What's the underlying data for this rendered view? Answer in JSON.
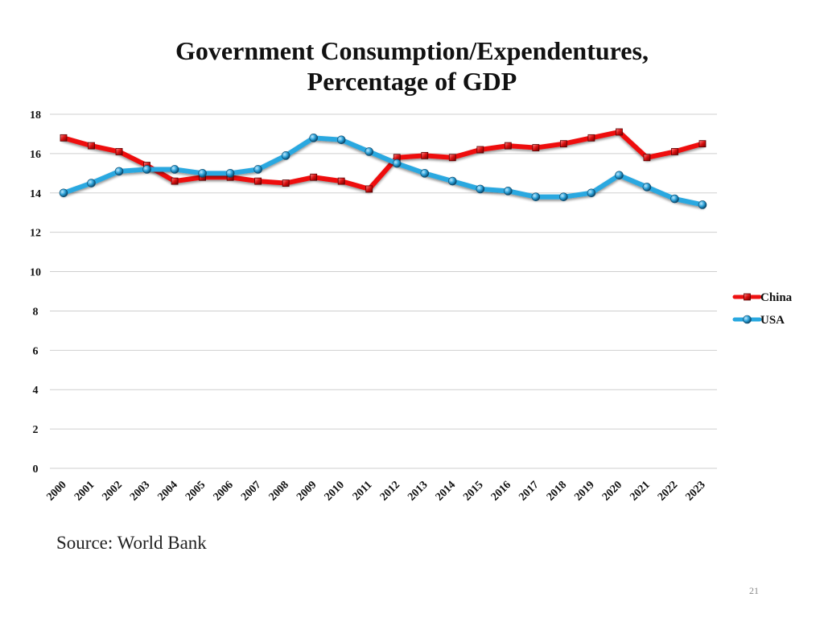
{
  "chart_data": {
    "type": "line",
    "title_line1": "Government Consumption/Expendentures,",
    "title_line2": "Percentage of GDP",
    "categories": [
      "2000",
      "2001",
      "2002",
      "2003",
      "2004",
      "2005",
      "2006",
      "2007",
      "2008",
      "2009",
      "2010",
      "2011",
      "2012",
      "2013",
      "2014",
      "2015",
      "2016",
      "2017",
      "2018",
      "2019",
      "2020",
      "2021",
      "2022",
      "2023"
    ],
    "ylim": [
      0,
      18
    ],
    "yticks": [
      "0",
      "2",
      "4",
      "6",
      "8",
      "10",
      "12",
      "14",
      "16",
      "18"
    ],
    "grid": true,
    "legend_position": "right",
    "series": [
      {
        "name": "China",
        "color": "#ee1111",
        "marker": "square",
        "values": [
          16.8,
          16.4,
          16.1,
          15.4,
          14.6,
          14.8,
          14.8,
          14.6,
          14.5,
          14.8,
          14.6,
          14.2,
          15.8,
          15.9,
          15.8,
          16.2,
          16.4,
          16.3,
          16.5,
          16.8,
          17.1,
          15.8,
          16.1,
          16.5
        ]
      },
      {
        "name": "USA",
        "color": "#29a8e0",
        "marker": "circle",
        "values": [
          14.0,
          14.5,
          15.1,
          15.2,
          15.2,
          15.0,
          15.0,
          15.2,
          15.9,
          16.8,
          16.7,
          16.1,
          15.5,
          15.0,
          14.6,
          14.2,
          14.1,
          13.8,
          13.8,
          14.0,
          14.9,
          14.3,
          13.7,
          13.4
        ]
      }
    ]
  },
  "source": "Source: World Bank",
  "slide_number": "21"
}
